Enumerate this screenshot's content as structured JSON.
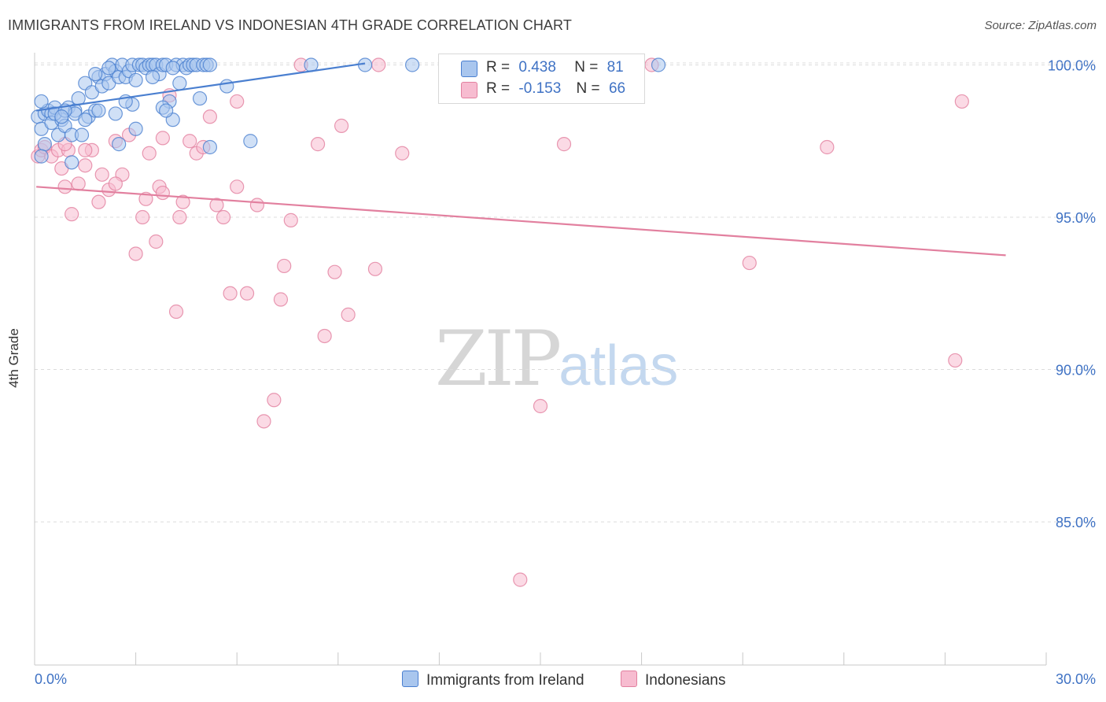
{
  "header": {
    "title": "IMMIGRANTS FROM IRELAND VS INDONESIAN 4TH GRADE CORRELATION CHART",
    "source": "Source: ZipAtlas.com"
  },
  "watermark": {
    "zip": "ZIP",
    "atlas": "atlas"
  },
  "legend": {
    "rows": [
      {
        "r_label": "R =",
        "r_value": "0.438",
        "n_label": "N =",
        "n_value": "81",
        "color": "#a9c6ee",
        "stroke": "#4a7fd0"
      },
      {
        "r_label": "R =",
        "r_value": "-0.153",
        "n_label": "N =",
        "n_value": "66",
        "color": "#f7bcd0",
        "stroke": "#e2809f"
      }
    ],
    "bottom": [
      {
        "label": "Immigrants from Ireland",
        "color": "#a9c6ee",
        "stroke": "#4a7fd0"
      },
      {
        "label": "Indonesians",
        "color": "#f7bcd0",
        "stroke": "#e2809f"
      }
    ]
  },
  "chart_data": {
    "type": "scatter",
    "title": "IMMIGRANTS FROM IRELAND VS INDONESIAN 4TH GRADE CORRELATION CHART",
    "xlabel": "",
    "ylabel": "4th Grade",
    "xlim": [
      0,
      30
    ],
    "ylim": [
      80.3,
      100.4
    ],
    "x_tick_labels": [
      "0.0%",
      "30.0%"
    ],
    "x_ticks": [
      0,
      3,
      6,
      9,
      12,
      15,
      18,
      21,
      24,
      27,
      30
    ],
    "y_ticks": [
      85,
      90,
      95,
      100
    ],
    "y_tick_labels": [
      "85.0%",
      "90.0%",
      "95.0%",
      "100.0%"
    ],
    "grid": true,
    "series": [
      {
        "name": "Immigrants from Ireland",
        "color": "#4a7fd0",
        "fill": "#a9c6ee",
        "trend": {
          "x": [
            0.05,
            9.8
          ],
          "y": [
            98.5,
            100.05
          ]
        },
        "points": [
          [
            0.1,
            98.3
          ],
          [
            0.2,
            97.9
          ],
          [
            0.3,
            98.4
          ],
          [
            0.4,
            98.5
          ],
          [
            0.5,
            98.4
          ],
          [
            0.6,
            98.6
          ],
          [
            0.3,
            97.4
          ],
          [
            0.2,
            97.0
          ],
          [
            0.5,
            98.1
          ],
          [
            0.7,
            97.7
          ],
          [
            0.8,
            98.2
          ],
          [
            0.9,
            98.0
          ],
          [
            1.0,
            98.6
          ],
          [
            1.1,
            97.7
          ],
          [
            1.2,
            98.5
          ],
          [
            1.3,
            98.9
          ],
          [
            1.4,
            97.7
          ],
          [
            1.5,
            99.4
          ],
          [
            1.6,
            98.3
          ],
          [
            1.7,
            99.1
          ],
          [
            1.8,
            98.5
          ],
          [
            1.9,
            99.6
          ],
          [
            2.0,
            99.3
          ],
          [
            2.1,
            99.7
          ],
          [
            2.2,
            99.4
          ],
          [
            2.3,
            100.0
          ],
          [
            2.4,
            99.8
          ],
          [
            2.5,
            99.6
          ],
          [
            2.6,
            100.0
          ],
          [
            2.7,
            99.6
          ],
          [
            2.8,
            99.8
          ],
          [
            2.9,
            100.0
          ],
          [
            3.0,
            99.5
          ],
          [
            3.1,
            100.0
          ],
          [
            3.2,
            100.0
          ],
          [
            3.3,
            99.9
          ],
          [
            3.4,
            100.0
          ],
          [
            3.5,
            100.0
          ],
          [
            3.6,
            100.0
          ],
          [
            3.7,
            99.7
          ],
          [
            3.8,
            100.0
          ],
          [
            3.9,
            100.0
          ],
          [
            4.0,
            98.8
          ],
          [
            4.1,
            98.2
          ],
          [
            4.2,
            100.0
          ],
          [
            4.3,
            99.4
          ],
          [
            4.4,
            100.0
          ],
          [
            4.5,
            99.9
          ],
          [
            4.6,
            100.0
          ],
          [
            4.7,
            100.0
          ],
          [
            4.8,
            100.0
          ],
          [
            4.9,
            98.9
          ],
          [
            5.0,
            100.0
          ],
          [
            5.1,
            100.0
          ],
          [
            5.2,
            100.0
          ],
          [
            2.4,
            98.4
          ],
          [
            2.9,
            98.7
          ],
          [
            3.8,
            98.6
          ],
          [
            2.5,
            97.4
          ],
          [
            3.0,
            97.9
          ],
          [
            1.2,
            98.4
          ],
          [
            1.9,
            98.5
          ],
          [
            1.1,
            96.8
          ],
          [
            5.2,
            97.3
          ],
          [
            5.7,
            99.3
          ],
          [
            6.4,
            97.5
          ],
          [
            8.2,
            100.0
          ],
          [
            9.8,
            100.0
          ],
          [
            11.2,
            100.0
          ],
          [
            18.5,
            100.0
          ],
          [
            0.2,
            98.8
          ],
          [
            0.6,
            98.4
          ],
          [
            0.9,
            98.5
          ],
          [
            1.5,
            98.2
          ],
          [
            2.7,
            98.8
          ],
          [
            3.9,
            98.5
          ],
          [
            4.1,
            99.9
          ],
          [
            3.5,
            99.6
          ],
          [
            2.2,
            99.9
          ],
          [
            1.8,
            99.7
          ],
          [
            0.8,
            98.3
          ]
        ]
      },
      {
        "name": "Indonesians",
        "color": "#e2809f",
        "fill": "#f7bcd0",
        "trend": {
          "x": [
            0.05,
            28.8
          ],
          "y": [
            96.0,
            93.75
          ]
        },
        "points": [
          [
            0.1,
            97.0
          ],
          [
            0.2,
            97.2
          ],
          [
            0.3,
            97.3
          ],
          [
            0.5,
            97.0
          ],
          [
            0.7,
            97.2
          ],
          [
            0.8,
            96.6
          ],
          [
            0.9,
            96.0
          ],
          [
            1.0,
            97.2
          ],
          [
            1.1,
            95.1
          ],
          [
            1.3,
            96.1
          ],
          [
            1.5,
            96.7
          ],
          [
            1.7,
            97.2
          ],
          [
            1.9,
            95.5
          ],
          [
            2.0,
            96.4
          ],
          [
            2.2,
            95.9
          ],
          [
            2.4,
            97.5
          ],
          [
            2.6,
            96.4
          ],
          [
            2.8,
            97.7
          ],
          [
            3.0,
            93.8
          ],
          [
            3.2,
            95.0
          ],
          [
            3.3,
            95.6
          ],
          [
            3.4,
            97.1
          ],
          [
            3.6,
            94.2
          ],
          [
            3.7,
            96.0
          ],
          [
            3.8,
            95.8
          ],
          [
            4.0,
            99.0
          ],
          [
            4.2,
            91.9
          ],
          [
            4.3,
            95.0
          ],
          [
            4.4,
            95.5
          ],
          [
            4.6,
            97.5
          ],
          [
            4.8,
            97.1
          ],
          [
            5.0,
            97.3
          ],
          [
            5.2,
            98.3
          ],
          [
            5.4,
            95.4
          ],
          [
            5.6,
            95.0
          ],
          [
            5.8,
            92.5
          ],
          [
            6.0,
            96.0
          ],
          [
            6.3,
            92.5
          ],
          [
            6.6,
            95.4
          ],
          [
            6.8,
            88.3
          ],
          [
            7.1,
            89.0
          ],
          [
            7.3,
            92.3
          ],
          [
            7.4,
            93.4
          ],
          [
            7.6,
            94.9
          ],
          [
            7.9,
            100.0
          ],
          [
            8.4,
            97.4
          ],
          [
            8.6,
            91.1
          ],
          [
            8.9,
            93.2
          ],
          [
            9.1,
            98.0
          ],
          [
            9.3,
            91.8
          ],
          [
            10.1,
            93.3
          ],
          [
            10.2,
            100.0
          ],
          [
            10.9,
            97.1
          ],
          [
            14.4,
            83.1
          ],
          [
            15.0,
            88.8
          ],
          [
            15.7,
            97.4
          ],
          [
            18.3,
            100.0
          ],
          [
            21.2,
            93.5
          ],
          [
            23.5,
            97.3
          ],
          [
            27.3,
            90.3
          ],
          [
            27.5,
            98.8
          ],
          [
            6.0,
            98.8
          ],
          [
            1.5,
            97.2
          ],
          [
            3.8,
            97.6
          ],
          [
            0.9,
            97.4
          ],
          [
            2.4,
            96.1
          ]
        ]
      }
    ]
  }
}
